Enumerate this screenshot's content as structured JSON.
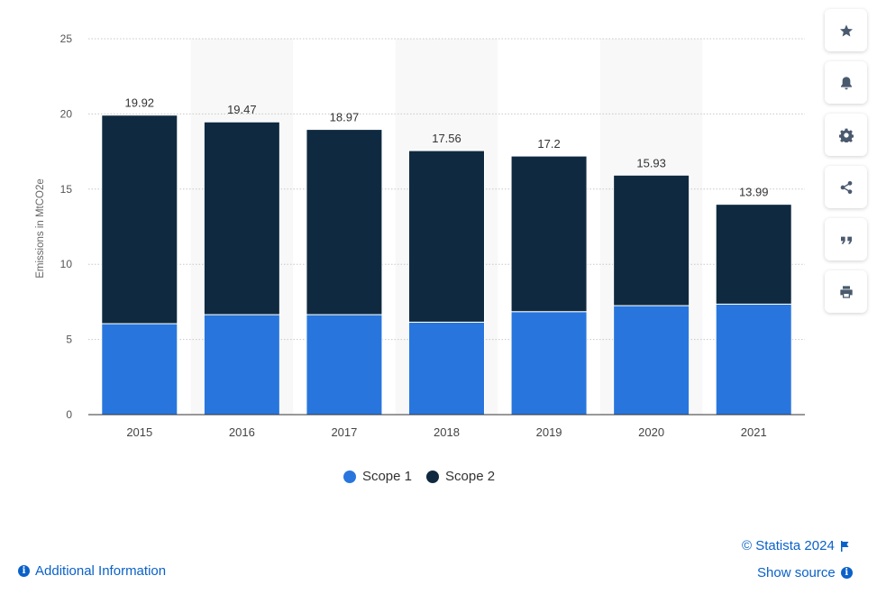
{
  "chart_data": {
    "type": "bar",
    "stacked": true,
    "categories": [
      "2015",
      "2016",
      "2017",
      "2018",
      "2019",
      "2020",
      "2021"
    ],
    "series": [
      {
        "name": "Scope 1",
        "values": [
          6.05,
          6.65,
          6.65,
          6.15,
          6.85,
          7.25,
          7.35
        ],
        "color": "#2876dd"
      },
      {
        "name": "Scope 2",
        "values": [
          13.87,
          12.82,
          12.32,
          11.41,
          10.35,
          8.68,
          6.64
        ],
        "color": "#0f2a40"
      }
    ],
    "totals": [
      "19.92",
      "19.47",
      "18.97",
      "17.56",
      "17.2",
      "15.93",
      "13.99"
    ],
    "xlabel": "",
    "ylabel": "Emissions in MtCO2e",
    "ylim": [
      0,
      25
    ],
    "yticks": [
      0,
      5,
      10,
      15,
      20,
      25
    ],
    "grid": true,
    "legend": "bottom-center"
  },
  "toolbar": [
    {
      "name": "favorite-button",
      "icon": "star-icon"
    },
    {
      "name": "notification-button",
      "icon": "bell-icon"
    },
    {
      "name": "settings-button",
      "icon": "gear-icon"
    },
    {
      "name": "share-button",
      "icon": "share-icon"
    },
    {
      "name": "cite-button",
      "icon": "quote-icon"
    },
    {
      "name": "print-button",
      "icon": "printer-icon"
    }
  ],
  "footer": {
    "additional_info": "Additional Information",
    "copyright": "© Statista 2024",
    "show_source": "Show source"
  }
}
